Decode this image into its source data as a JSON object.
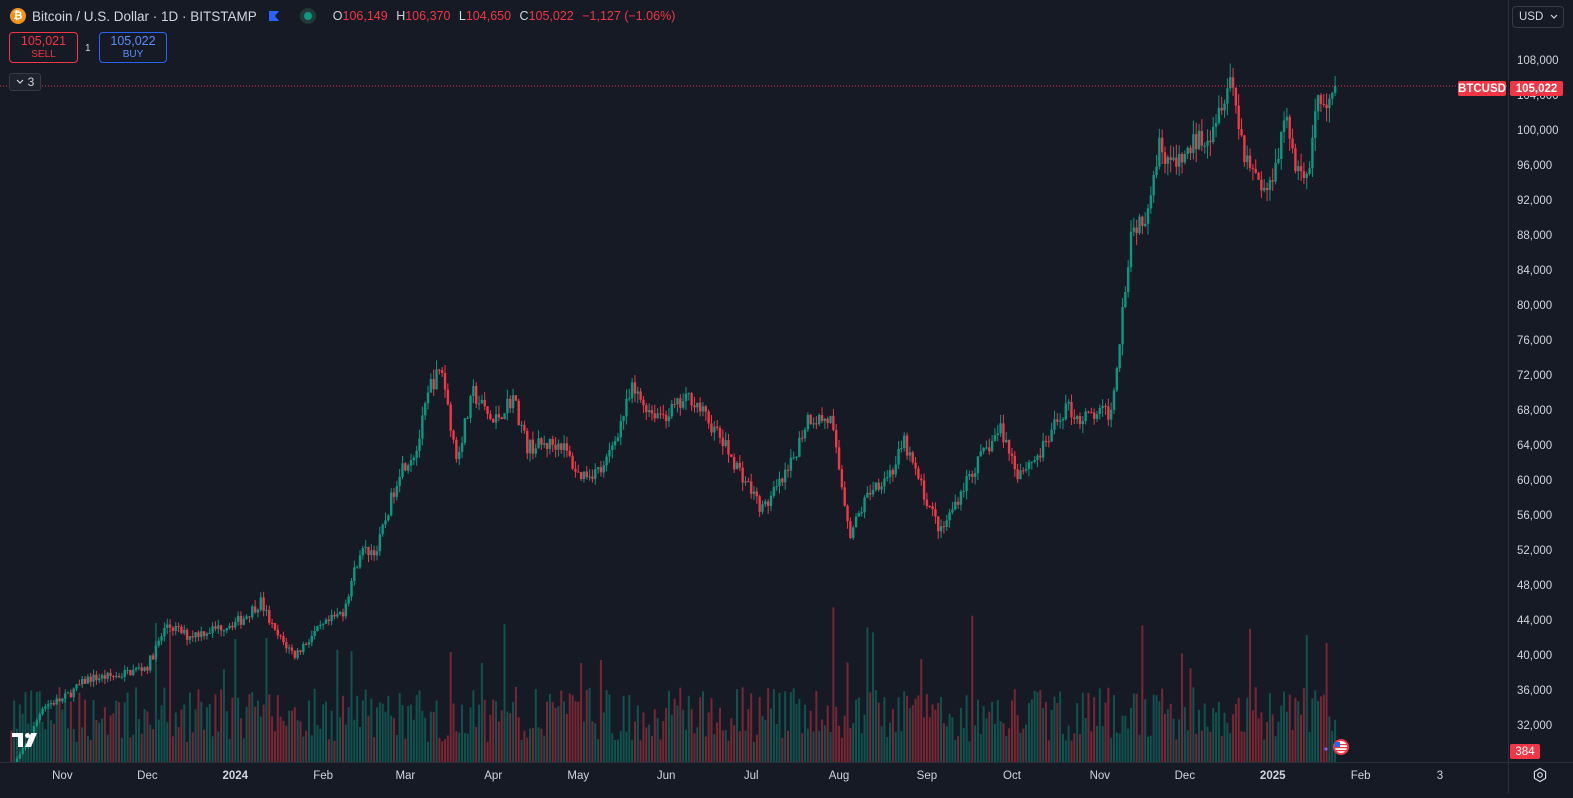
{
  "legend": {
    "logo_letter": "₿",
    "symbol_title": "Bitcoin / U.S. Dollar · 1D · BITSTAMP",
    "ohlc": {
      "o_label": "O",
      "o_value": "106,149",
      "h_label": "H",
      "h_value": "106,370",
      "l_label": "L",
      "l_value": "104,650",
      "c_label": "C",
      "c_value": "105,022",
      "change": "−1,127 (−1.06%)"
    }
  },
  "trade": {
    "sell_price": "105,021",
    "sell_label": "SELL",
    "spread": "1",
    "buy_price": "105,022",
    "buy_label": "BUY"
  },
  "indicators_toggle": {
    "count": "3"
  },
  "currency": {
    "selected": "USD"
  },
  "price_line": {
    "symbol": "BTCUSD",
    "price": "105,022",
    "value": 105022
  },
  "volume_badge": "384",
  "colors": {
    "up": "#089981",
    "down": "#f23645",
    "background": "#161a25",
    "accent": "#2962ff"
  },
  "icons": [
    "bitcoin-logo-icon",
    "flag-icon",
    "live-status-icon",
    "chevron-down-icon",
    "tradingview-logo-icon",
    "settings-icon",
    "economic-event-icon"
  ],
  "chart_data": {
    "type": "candlestick",
    "title": "Bitcoin / U.S. Dollar · 1D · BITSTAMP",
    "y_axis": {
      "ticks": [
        "108,000",
        "104,000",
        "100,000",
        "96,000",
        "92,000",
        "88,000",
        "84,000",
        "80,000",
        "76,000",
        "72,000",
        "68,000",
        "64,000",
        "60,000",
        "56,000",
        "52,000",
        "48,000",
        "44,000",
        "40,000",
        "36,000",
        "32,000"
      ],
      "tick_values": [
        108000,
        104000,
        100000,
        96000,
        92000,
        88000,
        84000,
        80000,
        76000,
        72000,
        68000,
        64000,
        60000,
        56000,
        52000,
        48000,
        44000,
        40000,
        36000,
        32000
      ],
      "range": [
        28600,
        110000
      ]
    },
    "x_axis": {
      "ticks": [
        "Nov",
        "Dec",
        "2024",
        "Feb",
        "Mar",
        "Apr",
        "May",
        "Jun",
        "Jul",
        "Aug",
        "Sep",
        "Oct",
        "Nov",
        "Dec",
        "2025",
        "Feb",
        "3"
      ],
      "bold": [
        "2024",
        "2025"
      ],
      "tick_dates": [
        "2023-11-01",
        "2023-12-01",
        "2024-01-01",
        "2024-02-01",
        "2024-03-01",
        "2024-04-01",
        "2024-05-01",
        "2024-06-01",
        "2024-07-01",
        "2024-08-01",
        "2024-09-01",
        "2024-10-01",
        "2024-11-01",
        "2024-12-01",
        "2025-01-01",
        "2025-02-01",
        "2025-03-01"
      ],
      "range": [
        "2023-10-10",
        "2025-03-25"
      ]
    },
    "series": [
      {
        "kind": "close",
        "x": [
          "2023-10-14",
          "2023-10-20",
          "2023-10-25",
          "2023-11-01",
          "2023-11-10",
          "2023-11-20",
          "2023-12-01",
          "2023-12-08",
          "2023-12-15",
          "2023-12-25",
          "2024-01-03",
          "2024-01-10",
          "2024-01-15",
          "2024-01-22",
          "2024-01-28",
          "2024-02-08",
          "2024-02-14",
          "2024-02-20",
          "2024-02-28",
          "2024-03-05",
          "2024-03-10",
          "2024-03-14",
          "2024-03-19",
          "2024-03-25",
          "2024-04-01",
          "2024-04-08",
          "2024-04-13",
          "2024-04-19",
          "2024-04-25",
          "2024-05-01",
          "2024-05-10",
          "2024-05-20",
          "2024-05-27",
          "2024-06-01",
          "2024-06-10",
          "2024-06-20",
          "2024-06-28",
          "2024-07-05",
          "2024-07-14",
          "2024-07-21",
          "2024-07-29",
          "2024-08-05",
          "2024-08-12",
          "2024-08-20",
          "2024-08-24",
          "2024-09-01",
          "2024-09-06",
          "2024-09-15",
          "2024-09-27",
          "2024-10-03",
          "2024-10-11",
          "2024-10-20",
          "2024-10-25",
          "2024-11-05",
          "2024-11-08",
          "2024-11-12",
          "2024-11-17",
          "2024-11-22",
          "2024-11-28",
          "2024-12-05",
          "2024-12-10",
          "2024-12-17",
          "2024-12-22",
          "2024-12-30",
          "2025-01-06",
          "2025-01-09",
          "2025-01-13",
          "2025-01-17",
          "2025-01-20",
          "2025-01-23"
        ],
        "y": [
          27000,
          30000,
          34200,
          34900,
          37300,
          37600,
          38700,
          43500,
          42200,
          43000,
          44000,
          46100,
          42500,
          40000,
          42200,
          45000,
          51800,
          52000,
          61200,
          63500,
          71000,
          72500,
          62500,
          69900,
          66500,
          69500,
          63800,
          64000,
          64200,
          60600,
          61200,
          70200,
          67800,
          67500,
          69500,
          64800,
          60500,
          56600,
          60800,
          67200,
          66800,
          53900,
          58900,
          61200,
          64200,
          57600,
          54000,
          60000,
          65900,
          60900,
          63000,
          68400,
          67000,
          67800,
          76500,
          88500,
          90500,
          98400,
          95600,
          98800,
          100000,
          106300,
          97500,
          92600,
          102200,
          95000,
          94500,
          104000,
          101500,
          105022
        ]
      }
    ]
  }
}
